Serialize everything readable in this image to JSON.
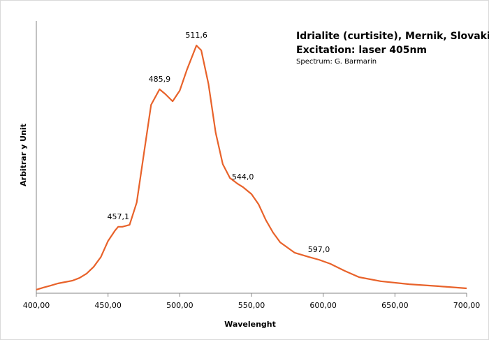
{
  "chart_data": {
    "type": "line",
    "title": "Idrialite (curtisite), Mernik, Slovakia;",
    "subtitle": "Excitation: laser 405nm",
    "credit": "Spectrum: G. Barmarin",
    "x_label": "Wavelenght",
    "y_label": "Arbitrar y Unit",
    "xlim": [
      400,
      700
    ],
    "ylim": [
      0,
      1
    ],
    "xticks": [
      {
        "value": 400,
        "label": "400,00"
      },
      {
        "value": 450,
        "label": "450,00"
      },
      {
        "value": 500,
        "label": "500,00"
      },
      {
        "value": 550,
        "label": "550,00"
      },
      {
        "value": 600,
        "label": "600,00"
      },
      {
        "value": 650,
        "label": "650,00"
      },
      {
        "value": 700,
        "label": "700,00"
      }
    ],
    "color": "#e8622a",
    "x": [
      400,
      405,
      410,
      415,
      420,
      425,
      430,
      435,
      440,
      445,
      450,
      455,
      457.1,
      460,
      465,
      470,
      475,
      480,
      485.9,
      490,
      495,
      500,
      505,
      511.6,
      515,
      520,
      525,
      530,
      535,
      540,
      544,
      550,
      555,
      560,
      565,
      570,
      580,
      590,
      597,
      605,
      615,
      625,
      640,
      660,
      680,
      700
    ],
    "values": [
      0.013,
      0.021,
      0.028,
      0.036,
      0.041,
      0.046,
      0.056,
      0.072,
      0.097,
      0.133,
      0.192,
      0.231,
      0.244,
      0.244,
      0.251,
      0.333,
      0.513,
      0.692,
      0.749,
      0.731,
      0.705,
      0.744,
      0.821,
      0.91,
      0.892,
      0.769,
      0.59,
      0.474,
      0.423,
      0.403,
      0.39,
      0.364,
      0.326,
      0.269,
      0.223,
      0.187,
      0.149,
      0.133,
      0.123,
      0.108,
      0.082,
      0.059,
      0.044,
      0.033,
      0.026,
      0.018
    ],
    "annotations": [
      {
        "value": 457.1,
        "label": "457,1"
      },
      {
        "value": 485.9,
        "label": "485,9"
      },
      {
        "value": 511.6,
        "label": "511,6"
      },
      {
        "value": 544.0,
        "label": "544,0"
      },
      {
        "value": 597.0,
        "label": "597,0"
      }
    ]
  }
}
